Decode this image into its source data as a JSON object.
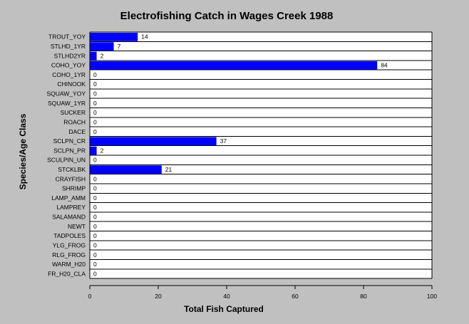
{
  "chart_data": {
    "type": "bar",
    "orientation": "horizontal",
    "title": "Electrofishing Catch in Wages Creek 1988",
    "xlabel": "Total Fish Captured",
    "ylabel": "Species/Age Class",
    "xlim": [
      0,
      100
    ],
    "xticks": [
      0,
      20,
      40,
      60,
      80,
      100
    ],
    "grid": false,
    "legend": "none",
    "bar_color": "#0000ff",
    "categories": [
      "TROUT_YOY",
      "STLHD_1YR",
      "STLHD2YR",
      "COHO_YOY",
      "COHO_1YR",
      "CHINOOK",
      "SQUAW_YOY",
      "SQUAW_1YR",
      "SUCKER",
      "ROACH",
      "DACE",
      "SCLPN_CR",
      "SCLPN_PR",
      "SCULPIN_UN",
      "STCKLBK",
      "CRAYFISH",
      "SHRIMP",
      "LAMP_AMM",
      "LAMPREY",
      "SALAMAND",
      "NEWT",
      "TADPOLES",
      "YLG_FROG",
      "RLG_FROG",
      "WARM_H20",
      "FR_H20_CLA"
    ],
    "values": [
      14,
      7,
      2,
      84,
      0,
      0,
      0,
      0,
      0,
      0,
      0,
      37,
      2,
      0,
      21,
      0,
      0,
      0,
      0,
      0,
      0,
      0,
      0,
      0,
      0,
      0
    ]
  }
}
